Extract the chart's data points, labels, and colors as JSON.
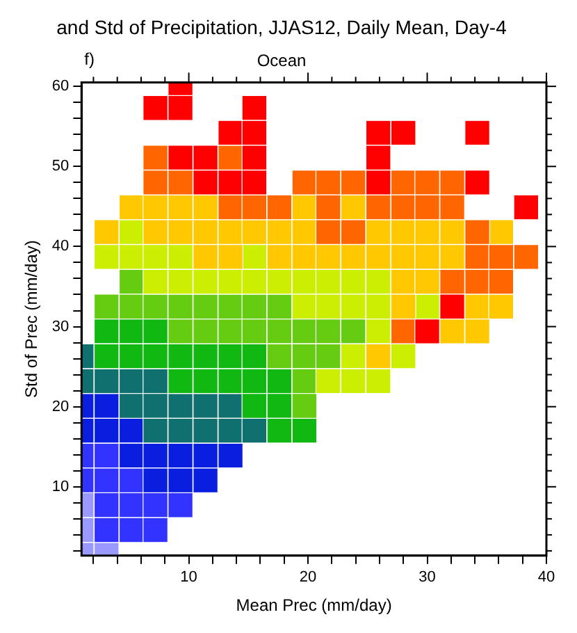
{
  "chart_data": {
    "type": "scatter",
    "title": "and Std of Precipitation, JJAS12, Daily Mean, Day-4",
    "subtitle": "Ocean",
    "annotations": [
      "f)"
    ],
    "xlabel": "Mean Prec (mm/day)",
    "ylabel": "Std of Prec (mm/day)",
    "xlim": [
      1,
      40
    ],
    "ylim": [
      1.4,
      60.5
    ],
    "xticks": [
      {
        "value": 2,
        "label": null
      },
      {
        "value": 4,
        "label": null
      },
      {
        "value": 6,
        "label": null
      },
      {
        "value": 8,
        "label": null
      },
      10,
      {
        "value": 12,
        "label": null
      },
      {
        "value": 14,
        "label": null
      },
      {
        "value": 16,
        "label": null
      },
      {
        "value": 18,
        "label": null
      },
      20,
      {
        "value": 22,
        "label": null
      },
      {
        "value": 24,
        "label": null
      },
      {
        "value": 26,
        "label": null
      },
      {
        "value": 28,
        "label": null
      },
      30,
      {
        "value": 32,
        "label": null
      },
      {
        "value": 34,
        "label": null
      },
      {
        "value": 36,
        "label": null
      },
      {
        "value": 38,
        "label": null
      },
      40
    ],
    "yticks": [
      {
        "value": 2,
        "label": null
      },
      {
        "value": 4,
        "label": null
      },
      {
        "value": 6,
        "label": null
      },
      {
        "value": 8,
        "label": null
      },
      10,
      {
        "value": 12,
        "label": null
      },
      {
        "value": 14,
        "label": null
      },
      {
        "value": 16,
        "label": null
      },
      {
        "value": 18,
        "label": null
      },
      20,
      {
        "value": 22,
        "label": null
      },
      {
        "value": 24,
        "label": null
      },
      {
        "value": 26,
        "label": null
      },
      {
        "value": 28,
        "label": null
      },
      30,
      {
        "value": 32,
        "label": null
      },
      {
        "value": 34,
        "label": null
      },
      {
        "value": 36,
        "label": null
      },
      {
        "value": 38,
        "label": null
      },
      40,
      {
        "value": 42,
        "label": null
      },
      {
        "value": 44,
        "label": null
      },
      {
        "value": 46,
        "label": null
      },
      {
        "value": 48,
        "label": null
      },
      50,
      {
        "value": 52,
        "label": null
      },
      {
        "value": 54,
        "label": null
      },
      {
        "value": 56,
        "label": null
      },
      {
        "value": 58,
        "label": null
      },
      60
    ],
    "grid": false,
    "legend": false,
    "marker": "square",
    "series": [
      {
        "color": "#ff0000",
        "x": [
          9.3,
          7.2,
          9.3,
          15.5,
          13.5,
          15.5,
          25.9,
          28,
          34.2,
          9.3,
          11.4,
          15.5,
          25.9,
          11.4,
          13.5,
          15.5,
          25.9,
          34.2,
          38.3,
          32.1,
          30
        ],
        "values": [
          60.4,
          57.3,
          57.3,
          57.3,
          54.2,
          54.2,
          54.2,
          54.2,
          54.2,
          51.1,
          51.1,
          51.1,
          51.1,
          48,
          48,
          48,
          48,
          48,
          44.9,
          32.5,
          29.4
        ]
      },
      {
        "color": "#ff6600",
        "x": [
          7.2,
          13.5,
          7.2,
          9.3,
          19.7,
          21.7,
          23.8,
          28,
          30,
          32.1,
          13.5,
          15.5,
          17.6,
          21.7,
          25.9,
          28,
          30,
          32.1,
          21.7,
          23.8,
          34.2,
          34.2,
          36.2,
          38.3,
          32.1,
          34.2,
          36.2,
          28
        ],
        "values": [
          51.1,
          51.1,
          48,
          48,
          48,
          48,
          48,
          48,
          48,
          48,
          44.9,
          44.9,
          44.9,
          44.9,
          44.9,
          44.9,
          44.9,
          44.9,
          41.8,
          41.8,
          41.8,
          38.7,
          38.7,
          38.7,
          35.6,
          35.6,
          35.6,
          29.4
        ]
      },
      {
        "color": "#ffc800",
        "x": [
          5.2,
          7.2,
          9.3,
          11.4,
          19.7,
          23.8,
          3.1,
          7.2,
          9.3,
          11.4,
          13.5,
          15.5,
          17.6,
          19.7,
          25.9,
          28,
          30,
          32.1,
          36.2,
          11.4,
          13.5,
          17.6,
          19.7,
          21.7,
          23.8,
          25.9,
          28,
          30,
          32.1,
          28,
          30,
          28,
          34.2,
          36.2,
          32.1,
          34.2,
          25.9
        ],
        "values": [
          44.9,
          44.9,
          44.9,
          44.9,
          44.9,
          44.9,
          41.8,
          41.8,
          41.8,
          41.8,
          41.8,
          41.8,
          41.8,
          41.8,
          41.8,
          41.8,
          41.8,
          41.8,
          41.8,
          38.7,
          38.7,
          38.7,
          38.7,
          38.7,
          38.7,
          38.7,
          38.7,
          38.7,
          38.7,
          35.6,
          35.6,
          32.5,
          32.5,
          32.5,
          29.4,
          29.4,
          26.3
        ]
      },
      {
        "color": "#ccee00",
        "x": [
          5.2,
          3.1,
          5.2,
          7.2,
          9.3,
          15.5,
          7.2,
          9.3,
          11.4,
          13.5,
          15.5,
          17.6,
          19.7,
          21.7,
          23.8,
          25.9,
          19.7,
          21.7,
          23.8,
          25.9,
          30,
          25.9,
          23.8,
          28,
          21.7,
          23.8,
          25.9
        ],
        "values": [
          41.8,
          38.7,
          38.7,
          38.7,
          38.7,
          38.7,
          35.6,
          35.6,
          35.6,
          35.6,
          35.6,
          35.6,
          35.6,
          35.6,
          35.6,
          35.6,
          32.5,
          32.5,
          32.5,
          32.5,
          32.5,
          29.4,
          26.3,
          26.3,
          23.2,
          23.2,
          23.2
        ]
      },
      {
        "color": "#66cc11",
        "x": [
          5.2,
          3.1,
          5.2,
          7.2,
          9.3,
          11.4,
          13.5,
          15.5,
          17.6,
          9.3,
          11.4,
          13.5,
          15.5,
          17.6,
          19.7,
          21.7,
          23.8,
          17.6,
          19.7,
          21.7,
          19.7,
          19.7
        ],
        "values": [
          35.6,
          32.5,
          32.5,
          32.5,
          32.5,
          32.5,
          32.5,
          32.5,
          32.5,
          29.4,
          29.4,
          29.4,
          29.4,
          29.4,
          29.4,
          29.4,
          29.4,
          26.3,
          26.3,
          26.3,
          23.2,
          20.1
        ]
      },
      {
        "color": "#11b811",
        "x": [
          3.1,
          5.2,
          7.2,
          3.1,
          5.2,
          7.2,
          9.3,
          11.4,
          13.5,
          15.5,
          9.3,
          11.4,
          13.5,
          15.5,
          17.6,
          15.5,
          17.6,
          17.6,
          19.7
        ],
        "values": [
          29.4,
          29.4,
          29.4,
          26.3,
          26.3,
          26.3,
          26.3,
          26.3,
          26.3,
          26.3,
          23.2,
          23.2,
          23.2,
          23.2,
          23.2,
          20.1,
          20.1,
          17,
          17
        ]
      },
      {
        "color": "#107070",
        "x": [
          1,
          1,
          3.1,
          5.2,
          7.2,
          5.2,
          7.2,
          9.3,
          11.4,
          13.5,
          7.2,
          9.3,
          11.4,
          13.5,
          15.5
        ],
        "values": [
          26.3,
          23.2,
          23.2,
          23.2,
          23.2,
          20.1,
          20.1,
          20.1,
          20.1,
          20.1,
          17,
          17,
          17,
          17,
          17
        ]
      },
      {
        "color": "#0a1ee0",
        "x": [
          1,
          3.1,
          1,
          3.1,
          5.2,
          5.2,
          7.2,
          9.3,
          11.4,
          13.5,
          7.2,
          9.3,
          11.4
        ],
        "values": [
          20.1,
          20.1,
          17,
          17,
          17,
          13.9,
          13.9,
          13.9,
          13.9,
          13.9,
          10.8,
          10.8,
          10.8
        ]
      },
      {
        "color": "#3333ff",
        "x": [
          1,
          3.1,
          1,
          3.1,
          5.2,
          3.1,
          5.2,
          7.2,
          9.3,
          3.1,
          5.2,
          7.2
        ],
        "values": [
          13.9,
          13.9,
          10.8,
          10.8,
          10.8,
          7.7,
          7.7,
          7.7,
          7.7,
          4.6,
          4.6,
          4.6
        ]
      },
      {
        "color": "#9999ff",
        "x": [
          1,
          1,
          1,
          3.1
        ],
        "values": [
          7.7,
          4.6,
          1.5,
          1.5
        ]
      }
    ]
  }
}
